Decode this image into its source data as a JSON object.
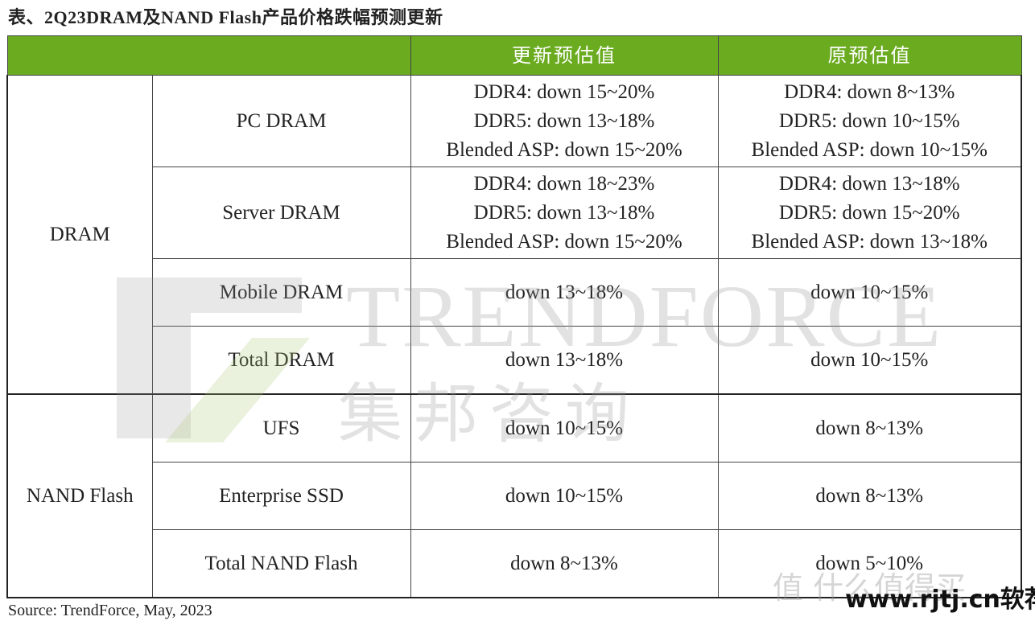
{
  "title": "表、2Q23DRAM及NAND Flash产品价格跌幅预测更新",
  "header": {
    "blank": "",
    "updated": "更新预估值",
    "original": "原预估值"
  },
  "groups": {
    "dram": "DRAM",
    "nand": "NAND Flash"
  },
  "rows": [
    {
      "product": "PC DRAM",
      "updated": [
        "DDR4: down 15~20%",
        "DDR5: down 13~18%",
        "Blended ASP: down 15~20%"
      ],
      "original": [
        "DDR4: down 8~13%",
        "DDR5: down 10~15%",
        "Blended ASP: down 10~15%"
      ]
    },
    {
      "product": "Server DRAM",
      "updated": [
        "DDR4: down 18~23%",
        "DDR5: down 13~18%",
        "Blended ASP: down 15~20%"
      ],
      "original": [
        "DDR4: down 13~18%",
        "DDR5: down 15~20%",
        "Blended ASP: down 13~18%"
      ]
    },
    {
      "product": "Mobile DRAM",
      "updated": "down 13~18%",
      "original": "down 10~15%"
    },
    {
      "product": "Total DRAM",
      "updated": "down 13~18%",
      "original": "down 10~15%"
    },
    {
      "product": "UFS",
      "updated": "down 10~15%",
      "original": "down 8~13%"
    },
    {
      "product": "Enterprise SSD",
      "updated": "down 10~15%",
      "original": "down 8~13%"
    },
    {
      "product": "Total NAND Flash",
      "updated": "down 8~13%",
      "original": "down 5~10%"
    }
  ],
  "source": "Source: TrendForce, May, 2023",
  "watermarks": {
    "trendforce": "TRENDFORCE",
    "trendforce_cn": "集邦咨询",
    "smzdm": "值 什么值得买",
    "rjtj": "www.rjtj.cn软荐网"
  },
  "colors": {
    "header_bg": "#6aab1f"
  }
}
